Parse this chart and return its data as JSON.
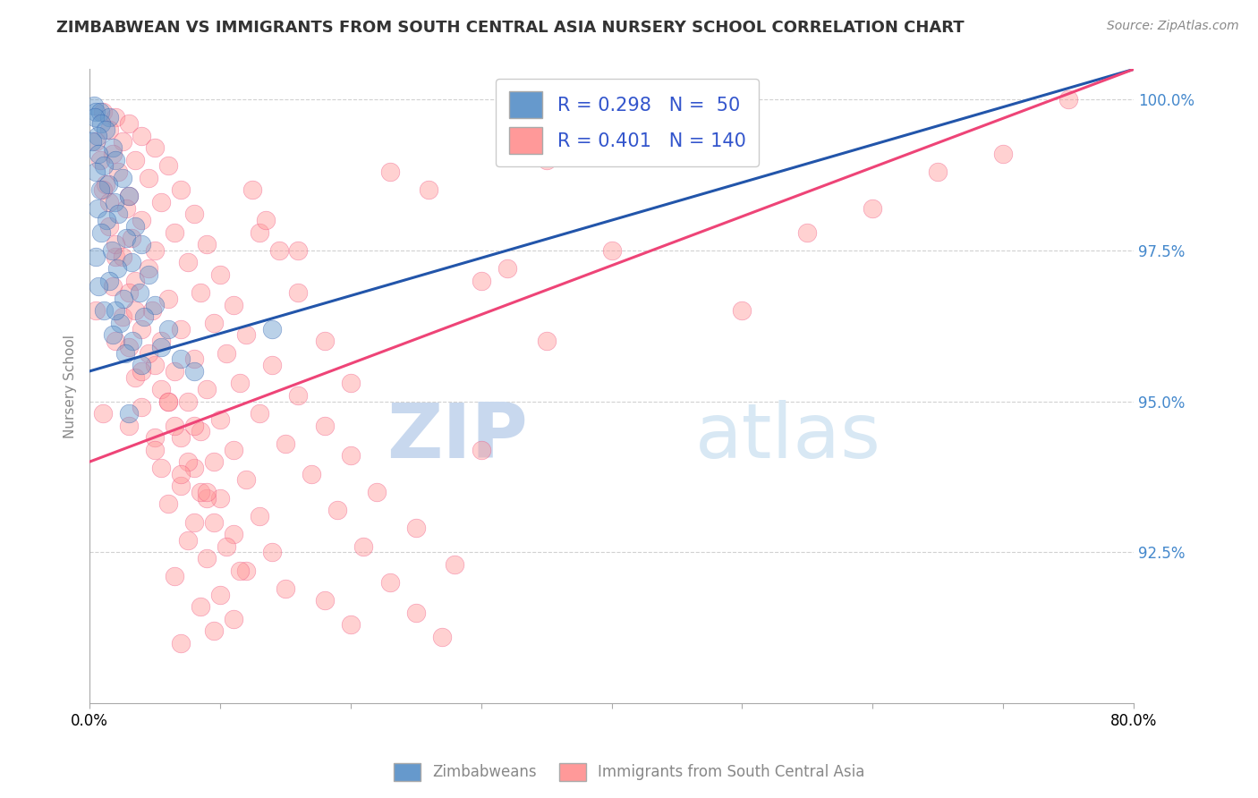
{
  "title": "ZIMBABWEAN VS IMMIGRANTS FROM SOUTH CENTRAL ASIA NURSERY SCHOOL CORRELATION CHART",
  "source": "Source: ZipAtlas.com",
  "ylabel": "Nursery School",
  "xlim": [
    0.0,
    80.0
  ],
  "ylim": [
    90.0,
    100.5
  ],
  "xticks": [
    0.0,
    10.0,
    20.0,
    30.0,
    40.0,
    50.0,
    60.0,
    70.0,
    80.0
  ],
  "yticks": [
    92.5,
    95.0,
    97.5,
    100.0
  ],
  "ytick_labels": [
    "92.5%",
    "95.0%",
    "97.5%",
    "100.0%"
  ],
  "xtick_labels": [
    "0.0%",
    "",
    "",
    "",
    "",
    "",
    "",
    "",
    "80.0%"
  ],
  "legend_R_blue": "R = 0.298",
  "legend_N_blue": "N =  50",
  "legend_R_pink": "R = 0.401",
  "legend_N_pink": "N = 140",
  "legend_label_blue": "Zimbabweans",
  "legend_label_pink": "Immigrants from South Central Asia",
  "blue_color": "#6699CC",
  "pink_color": "#FF9999",
  "blue_line_color": "#2255AA",
  "pink_line_color": "#EE4477",
  "watermark_zip": "ZIP",
  "watermark_atlas": "atlas",
  "blue_scatter": [
    [
      0.3,
      99.9
    ],
    [
      0.5,
      99.8
    ],
    [
      0.8,
      99.8
    ],
    [
      1.5,
      99.7
    ],
    [
      0.4,
      99.7
    ],
    [
      0.9,
      99.6
    ],
    [
      1.2,
      99.5
    ],
    [
      0.6,
      99.4
    ],
    [
      0.2,
      99.3
    ],
    [
      1.8,
      99.2
    ],
    [
      0.7,
      99.1
    ],
    [
      2.0,
      99.0
    ],
    [
      1.1,
      98.9
    ],
    [
      0.5,
      98.8
    ],
    [
      2.5,
      98.7
    ],
    [
      1.4,
      98.6
    ],
    [
      0.8,
      98.5
    ],
    [
      3.0,
      98.4
    ],
    [
      1.9,
      98.3
    ],
    [
      0.6,
      98.2
    ],
    [
      2.2,
      98.1
    ],
    [
      1.3,
      98.0
    ],
    [
      3.5,
      97.9
    ],
    [
      0.9,
      97.8
    ],
    [
      2.8,
      97.7
    ],
    [
      4.0,
      97.6
    ],
    [
      1.7,
      97.5
    ],
    [
      0.5,
      97.4
    ],
    [
      3.2,
      97.3
    ],
    [
      2.1,
      97.2
    ],
    [
      4.5,
      97.1
    ],
    [
      1.5,
      97.0
    ],
    [
      0.7,
      96.9
    ],
    [
      3.8,
      96.8
    ],
    [
      2.6,
      96.7
    ],
    [
      5.0,
      96.6
    ],
    [
      1.1,
      96.5
    ],
    [
      4.2,
      96.4
    ],
    [
      2.3,
      96.3
    ],
    [
      6.0,
      96.2
    ],
    [
      1.8,
      96.1
    ],
    [
      3.3,
      96.0
    ],
    [
      5.5,
      95.9
    ],
    [
      2.7,
      95.8
    ],
    [
      7.0,
      95.7
    ],
    [
      4.0,
      95.6
    ],
    [
      8.0,
      95.5
    ],
    [
      3.0,
      94.8
    ],
    [
      2.0,
      96.5
    ],
    [
      14.0,
      96.2
    ]
  ],
  "pink_scatter": [
    [
      1.0,
      99.8
    ],
    [
      2.0,
      99.7
    ],
    [
      3.0,
      99.6
    ],
    [
      1.5,
      99.5
    ],
    [
      4.0,
      99.4
    ],
    [
      2.5,
      99.3
    ],
    [
      5.0,
      99.2
    ],
    [
      1.8,
      99.1
    ],
    [
      3.5,
      99.0
    ],
    [
      6.0,
      98.9
    ],
    [
      2.2,
      98.8
    ],
    [
      4.5,
      98.7
    ],
    [
      1.2,
      98.6
    ],
    [
      7.0,
      98.5
    ],
    [
      3.0,
      98.4
    ],
    [
      5.5,
      98.3
    ],
    [
      2.8,
      98.2
    ],
    [
      8.0,
      98.1
    ],
    [
      4.0,
      98.0
    ],
    [
      1.5,
      97.9
    ],
    [
      6.5,
      97.8
    ],
    [
      3.2,
      97.7
    ],
    [
      9.0,
      97.6
    ],
    [
      5.0,
      97.5
    ],
    [
      2.0,
      97.4
    ],
    [
      7.5,
      97.3
    ],
    [
      4.5,
      97.2
    ],
    [
      10.0,
      97.1
    ],
    [
      3.5,
      97.0
    ],
    [
      1.8,
      96.9
    ],
    [
      8.5,
      96.8
    ],
    [
      6.0,
      96.7
    ],
    [
      11.0,
      96.6
    ],
    [
      4.8,
      96.5
    ],
    [
      2.5,
      96.4
    ],
    [
      9.5,
      96.3
    ],
    [
      7.0,
      96.2
    ],
    [
      12.0,
      96.1
    ],
    [
      5.5,
      96.0
    ],
    [
      3.0,
      95.9
    ],
    [
      10.5,
      95.8
    ],
    [
      8.0,
      95.7
    ],
    [
      14.0,
      95.6
    ],
    [
      6.5,
      95.5
    ],
    [
      3.5,
      95.4
    ],
    [
      11.5,
      95.3
    ],
    [
      9.0,
      95.2
    ],
    [
      16.0,
      95.1
    ],
    [
      7.5,
      95.0
    ],
    [
      4.0,
      94.9
    ],
    [
      13.0,
      94.8
    ],
    [
      10.0,
      94.7
    ],
    [
      18.0,
      94.6
    ],
    [
      8.5,
      94.5
    ],
    [
      5.0,
      94.4
    ],
    [
      15.0,
      94.3
    ],
    [
      11.0,
      94.2
    ],
    [
      20.0,
      94.1
    ],
    [
      9.5,
      94.0
    ],
    [
      5.5,
      93.9
    ],
    [
      17.0,
      93.8
    ],
    [
      12.0,
      93.7
    ],
    [
      7.0,
      93.6
    ],
    [
      22.0,
      93.5
    ],
    [
      10.0,
      93.4
    ],
    [
      6.0,
      93.3
    ],
    [
      19.0,
      93.2
    ],
    [
      13.0,
      93.1
    ],
    [
      8.0,
      93.0
    ],
    [
      25.0,
      92.9
    ],
    [
      11.0,
      92.8
    ],
    [
      7.5,
      92.7
    ],
    [
      21.0,
      92.6
    ],
    [
      14.0,
      92.5
    ],
    [
      9.0,
      92.4
    ],
    [
      28.0,
      92.3
    ],
    [
      12.0,
      92.2
    ],
    [
      6.5,
      92.1
    ],
    [
      23.0,
      92.0
    ],
    [
      15.0,
      91.9
    ],
    [
      10.0,
      91.8
    ],
    [
      30.0,
      97.0
    ],
    [
      18.0,
      91.7
    ],
    [
      8.5,
      91.6
    ],
    [
      25.0,
      91.5
    ],
    [
      16.0,
      97.5
    ],
    [
      11.0,
      91.4
    ],
    [
      32.0,
      97.2
    ],
    [
      20.0,
      91.3
    ],
    [
      9.5,
      91.2
    ],
    [
      27.0,
      91.1
    ],
    [
      13.0,
      97.8
    ],
    [
      7.0,
      91.0
    ],
    [
      35.0,
      99.0
    ],
    [
      0.5,
      99.3
    ],
    [
      1.0,
      98.5
    ],
    [
      2.0,
      97.6
    ],
    [
      3.0,
      96.8
    ],
    [
      4.0,
      96.2
    ],
    [
      5.0,
      95.6
    ],
    [
      6.0,
      95.0
    ],
    [
      7.0,
      94.4
    ],
    [
      8.0,
      93.9
    ],
    [
      9.0,
      93.4
    ],
    [
      0.8,
      99.0
    ],
    [
      1.5,
      98.3
    ],
    [
      2.5,
      97.4
    ],
    [
      3.5,
      96.5
    ],
    [
      4.5,
      95.8
    ],
    [
      5.5,
      95.2
    ],
    [
      6.5,
      94.6
    ],
    [
      7.5,
      94.0
    ],
    [
      8.5,
      93.5
    ],
    [
      9.5,
      93.0
    ],
    [
      10.5,
      92.6
    ],
    [
      11.5,
      92.2
    ],
    [
      12.5,
      98.5
    ],
    [
      13.5,
      98.0
    ],
    [
      14.5,
      97.5
    ],
    [
      16.0,
      96.8
    ],
    [
      18.0,
      96.0
    ],
    [
      20.0,
      95.3
    ],
    [
      23.0,
      98.8
    ],
    [
      26.0,
      98.5
    ],
    [
      30.0,
      94.2
    ],
    [
      35.0,
      96.0
    ],
    [
      40.0,
      97.5
    ],
    [
      50.0,
      96.5
    ],
    [
      55.0,
      97.8
    ],
    [
      60.0,
      98.2
    ],
    [
      65.0,
      98.8
    ],
    [
      70.0,
      99.1
    ],
    [
      75.0,
      100.0
    ],
    [
      1.0,
      94.8
    ],
    [
      3.0,
      94.6
    ],
    [
      5.0,
      94.2
    ],
    [
      7.0,
      93.8
    ],
    [
      9.0,
      93.5
    ],
    [
      0.5,
      96.5
    ],
    [
      2.0,
      96.0
    ],
    [
      4.0,
      95.5
    ],
    [
      6.0,
      95.0
    ],
    [
      8.0,
      94.6
    ]
  ],
  "blue_line": {
    "x0": 0.0,
    "x1": 80.0,
    "y0": 95.5,
    "y1": 100.5
  },
  "pink_line": {
    "x0": 0.0,
    "x1": 80.0,
    "y0": 94.0,
    "y1": 100.5
  }
}
